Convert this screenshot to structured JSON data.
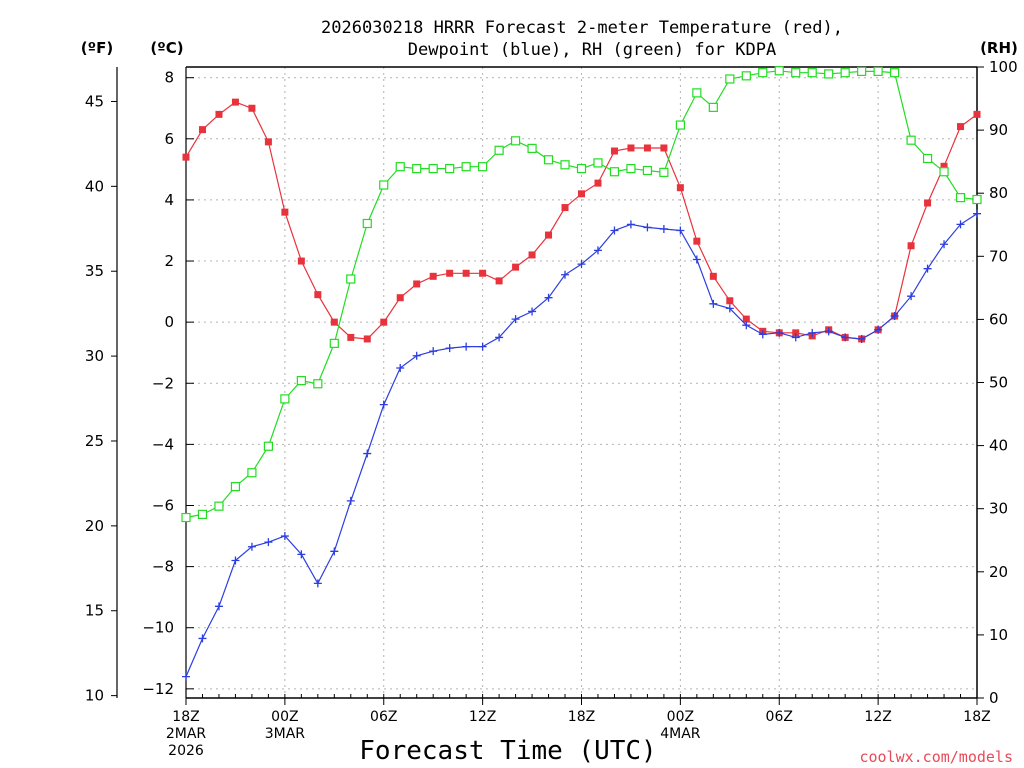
{
  "chart_data": {
    "type": "line",
    "title_line1": "2026030218 HRRR Forecast 2-meter Temperature (red),",
    "title_line2": "Dewpoint (blue), RH (green) for KDPA",
    "left_units_f": "(ºF)",
    "left_units_c": "(ºC)",
    "right_units": "(RH)",
    "xlabel": "Forecast Time (UTC)",
    "credit": "coolwx.com/models",
    "x_ticks": [
      {
        "index": 0,
        "lines": [
          "18Z",
          "2MAR",
          "2026"
        ]
      },
      {
        "index": 6,
        "lines": [
          "00Z",
          "3MAR"
        ]
      },
      {
        "index": 12,
        "lines": [
          "06Z"
        ]
      },
      {
        "index": 18,
        "lines": [
          "12Z"
        ]
      },
      {
        "index": 24,
        "lines": [
          "18Z"
        ]
      },
      {
        "index": 30,
        "lines": [
          "00Z",
          "4MAR"
        ]
      },
      {
        "index": 36,
        "lines": [
          "06Z"
        ]
      },
      {
        "index": 42,
        "lines": [
          "12Z"
        ]
      },
      {
        "index": 48,
        "lines": [
          "18Z"
        ]
      }
    ],
    "x_range": [
      0,
      48
    ],
    "celsius_axis": {
      "range": [
        -12.3,
        8.35
      ],
      "ticks": [
        -12,
        -10,
        -8,
        -6,
        -4,
        -2,
        0,
        2,
        4,
        6,
        8
      ]
    },
    "fahrenheit_axis": {
      "ticks": [
        10,
        15,
        20,
        25,
        30,
        35,
        40,
        45
      ]
    },
    "rh_axis": {
      "range": [
        0,
        100
      ],
      "ticks": [
        0,
        10,
        20,
        30,
        40,
        50,
        60,
        70,
        80,
        90,
        100
      ]
    },
    "series": [
      {
        "name": "Temperature",
        "units": "C",
        "color": "#e8323c",
        "marker": "filled-square",
        "values": [
          5.4,
          6.3,
          6.8,
          7.2,
          7.0,
          5.9,
          3.6,
          2.0,
          0.9,
          0.0,
          -0.5,
          -0.55,
          0.0,
          0.8,
          1.25,
          1.5,
          1.6,
          1.6,
          1.6,
          1.35,
          1.8,
          2.2,
          2.85,
          3.75,
          4.2,
          4.55,
          5.6,
          5.7,
          5.7,
          5.7,
          4.4,
          2.65,
          1.5,
          0.7,
          0.1,
          -0.3,
          -0.35,
          -0.35,
          -0.45,
          -0.25,
          -0.5,
          -0.55,
          -0.25,
          0.2,
          2.5,
          3.9,
          5.1,
          6.4,
          6.8
        ]
      },
      {
        "name": "Dewpoint",
        "units": "C",
        "color": "#2c3ee0",
        "marker": "plus",
        "values": [
          -11.6,
          -10.35,
          -9.3,
          -7.8,
          -7.35,
          -7.2,
          -7.0,
          -7.6,
          -8.55,
          -7.5,
          -5.85,
          -4.3,
          -2.7,
          -1.5,
          -1.1,
          -0.95,
          -0.85,
          -0.8,
          -0.8,
          -0.5,
          0.1,
          0.35,
          0.8,
          1.55,
          1.9,
          2.35,
          3.0,
          3.2,
          3.1,
          3.05,
          3.0,
          2.05,
          0.6,
          0.45,
          -0.1,
          -0.4,
          -0.35,
          -0.5,
          -0.35,
          -0.3,
          -0.5,
          -0.55,
          -0.25,
          0.2,
          0.85,
          1.75,
          2.55,
          3.2,
          3.55
        ]
      },
      {
        "name": "RH",
        "units": "%",
        "color": "#22dd22",
        "marker": "open-square",
        "values": [
          28.6,
          29.1,
          30.4,
          33.5,
          35.7,
          39.9,
          47.4,
          50.3,
          49.8,
          56.2,
          66.4,
          75.2,
          81.3,
          84.2,
          83.9,
          83.9,
          83.9,
          84.2,
          84.2,
          86.8,
          88.3,
          87.1,
          85.3,
          84.5,
          83.9,
          84.8,
          83.4,
          83.9,
          83.6,
          83.3,
          90.8,
          95.9,
          93.6,
          98.1,
          98.6,
          99.1,
          99.4,
          99.1,
          99.1,
          98.9,
          99.1,
          99.3,
          99.3,
          99.1,
          88.4,
          85.5,
          83.4,
          79.3,
          79.0
        ]
      }
    ]
  }
}
